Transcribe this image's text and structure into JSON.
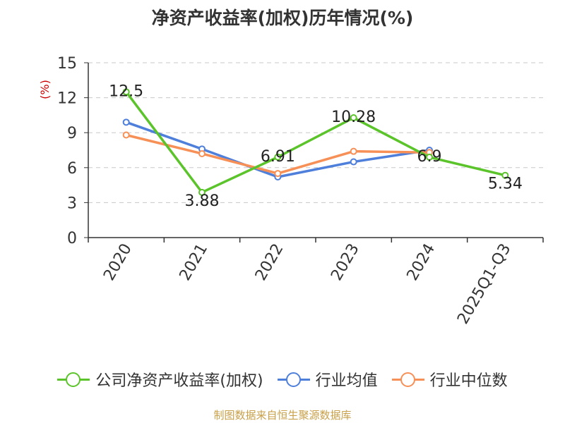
{
  "chart_data": {
    "type": "line",
    "title": "净资产收益率(加权)历年情况(%)",
    "ylabel": "(%)",
    "xlabel": "",
    "categories": [
      "2020",
      "2021",
      "2022",
      "2023",
      "2024",
      "2025Q1-Q3"
    ],
    "y_ticks": [
      "0",
      "3",
      "6",
      "9",
      "12",
      "15"
    ],
    "ylim": [
      0,
      15
    ],
    "grid": true,
    "legend_position": "bottom",
    "series": [
      {
        "name": "公司净资产收益率(加权)",
        "color": "#5bc42a",
        "values": [
          12.5,
          3.88,
          6.91,
          10.28,
          6.9,
          5.34
        ],
        "labels": [
          "12.5",
          "3.88",
          "6.91",
          "10.28",
          "6.9",
          "5.34"
        ]
      },
      {
        "name": "行业均值",
        "color": "#4e7fdb",
        "values": [
          9.9,
          7.6,
          5.2,
          6.5,
          7.5,
          null
        ]
      },
      {
        "name": "行业中位数",
        "color": "#f79057",
        "values": [
          8.8,
          7.2,
          5.5,
          7.4,
          7.3,
          null
        ]
      }
    ]
  },
  "source": "制图数据来自恒生聚源数据库"
}
